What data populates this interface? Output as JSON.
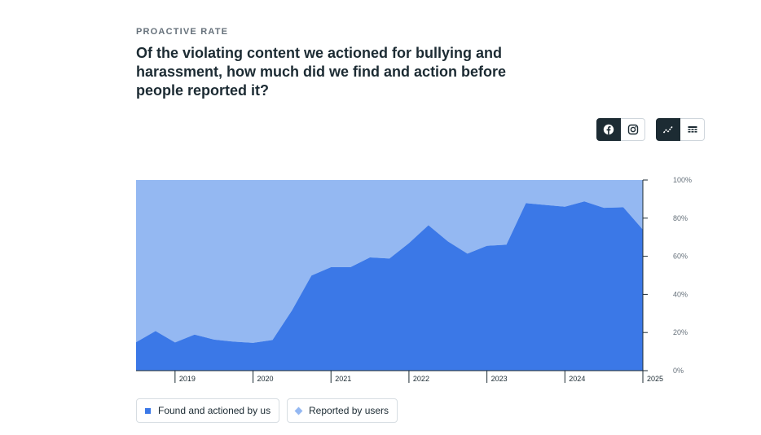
{
  "header": {
    "eyebrow": "PROACTIVE RATE",
    "title": "Of the violating content we actioned for bullying and harassment, how much did we find and action before people reported it?"
  },
  "platform_toggle": [
    {
      "icon": "facebook-icon",
      "active": true
    },
    {
      "icon": "instagram-icon",
      "active": false
    }
  ],
  "view_toggle": [
    {
      "icon": "line-chart-icon",
      "active": true
    },
    {
      "icon": "table-icon",
      "active": false
    }
  ],
  "colors": {
    "found": "#3b78e7",
    "reported": "#94b8f2",
    "axis": "#1c2b33",
    "text": "#1c2b33",
    "muted": "#65707a"
  },
  "chart_data": {
    "type": "area",
    "stacked": true,
    "x_ticks": [
      "2019",
      "2020",
      "2021",
      "2022",
      "2023",
      "2024",
      "2025"
    ],
    "y_ticks": [
      "100%",
      "80%",
      "60%",
      "40%",
      "20%",
      "0%"
    ],
    "ylim": [
      0,
      100
    ],
    "x": [
      "2018 Q3",
      "2018 Q4",
      "2019 Q1",
      "2019 Q2",
      "2019 Q3",
      "2019 Q4",
      "2020 Q1",
      "2020 Q2",
      "2020 Q3",
      "2020 Q4",
      "2021 Q1",
      "2021 Q2",
      "2021 Q3",
      "2021 Q4",
      "2022 Q1",
      "2022 Q2",
      "2022 Q3",
      "2022 Q4",
      "2023 Q1",
      "2023 Q2",
      "2023 Q3",
      "2023 Q4",
      "2024 Q1",
      "2024 Q2",
      "2024 Q3",
      "2024 Q4",
      "2025 Q1"
    ],
    "series": [
      {
        "name": "Found and actioned by us",
        "values": [
          14.9,
          20.8,
          14.8,
          18.9,
          16.3,
          15.2,
          14.6,
          16.1,
          31.6,
          49.9,
          54.3,
          54.3,
          59.4,
          58.8,
          66.9,
          76.3,
          67.8,
          61.4,
          65.5,
          66.1,
          87.9,
          86.9,
          86.0,
          88.8,
          85.4,
          85.7,
          74.0
        ]
      },
      {
        "name": "Reported by users",
        "values": [
          85.1,
          79.2,
          85.2,
          81.1,
          83.7,
          84.8,
          85.4,
          83.9,
          68.4,
          50.1,
          45.7,
          45.7,
          40.6,
          41.2,
          33.1,
          23.7,
          32.2,
          38.6,
          34.5,
          33.9,
          12.1,
          13.1,
          14.0,
          11.2,
          14.6,
          14.3,
          26.0
        ]
      }
    ]
  },
  "legend": [
    {
      "label": "Found and actioned by us",
      "shape": "square"
    },
    {
      "label": "Reported by users",
      "shape": "diamond"
    }
  ]
}
